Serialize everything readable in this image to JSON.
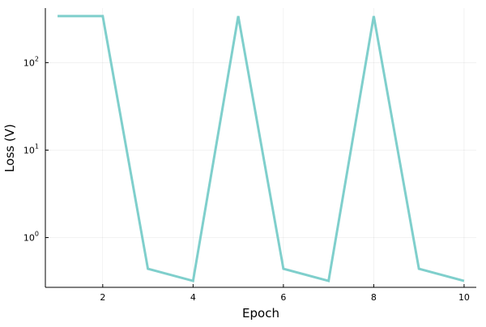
{
  "chart_data": {
    "type": "line",
    "title": "",
    "xlabel": "Epoch",
    "ylabel": "Loss (V)",
    "yscale": "log10",
    "xlim": [
      0.73,
      10.27
    ],
    "ylim": [
      0.27,
      420
    ],
    "grid": true,
    "legend": "none",
    "x_ticks": [
      2,
      4,
      6,
      8,
      10
    ],
    "y_ticks": [
      {
        "value": 1,
        "base": "10",
        "exp": "0"
      },
      {
        "value": 10,
        "base": "10",
        "exp": "1"
      },
      {
        "value": 100,
        "base": "10",
        "exp": "2"
      }
    ],
    "series": [
      {
        "color": "#7fcfcc",
        "x": [
          1,
          2,
          3,
          4,
          5,
          6,
          7,
          8,
          9,
          10
        ],
        "y": [
          340,
          340,
          0.44,
          0.32,
          340,
          0.44,
          0.32,
          340,
          0.44,
          0.32
        ]
      }
    ]
  }
}
